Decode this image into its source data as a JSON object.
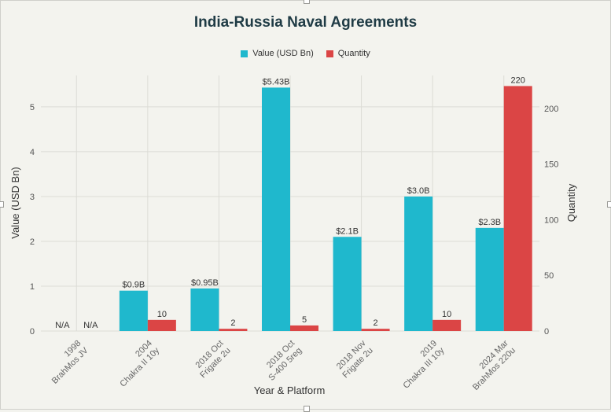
{
  "chart_data": {
    "type": "bar",
    "title": "India-Russia Naval Agreements",
    "xlabel": "Year & Platform",
    "ylabel": "Value (USD Bn)",
    "y2label": "Quantity",
    "categories": [
      [
        "1998",
        "BrahMos JV"
      ],
      [
        "2004",
        "Chakra II 10y"
      ],
      [
        "2018 Oct",
        "Frigate 2u"
      ],
      [
        "2018 Oct",
        "S-400 5reg"
      ],
      [
        "2018 Nov",
        "Frigate 2u"
      ],
      [
        "2019",
        "Chakra III 10y"
      ],
      [
        "2024 Mar",
        "BrahMos 220u"
      ]
    ],
    "series": [
      {
        "name": "Value (USD Bn)",
        "axis": "left",
        "color": "#1fb8cd",
        "values": [
          null,
          0.9,
          0.95,
          5.43,
          2.1,
          3.0,
          2.3
        ],
        "labels": [
          "N/A",
          "$0.9B",
          "$0.95B",
          "$5.43B",
          "$2.1B",
          "$3.0B",
          "$2.3B"
        ]
      },
      {
        "name": "Quantity",
        "axis": "right",
        "color": "#db4545",
        "values": [
          null,
          10,
          2,
          5,
          2,
          10,
          220
        ],
        "labels": [
          "N/A",
          "10",
          "2",
          "5",
          "2",
          "10",
          "220"
        ]
      }
    ],
    "ylim": [
      0,
      5.7
    ],
    "y_ticks": [
      0,
      1,
      2,
      3,
      4,
      5
    ],
    "y2lim": [
      0,
      229.5
    ],
    "y2_ticks": [
      0,
      50,
      100,
      150,
      200
    ],
    "grid": true,
    "legend": "top-center"
  }
}
